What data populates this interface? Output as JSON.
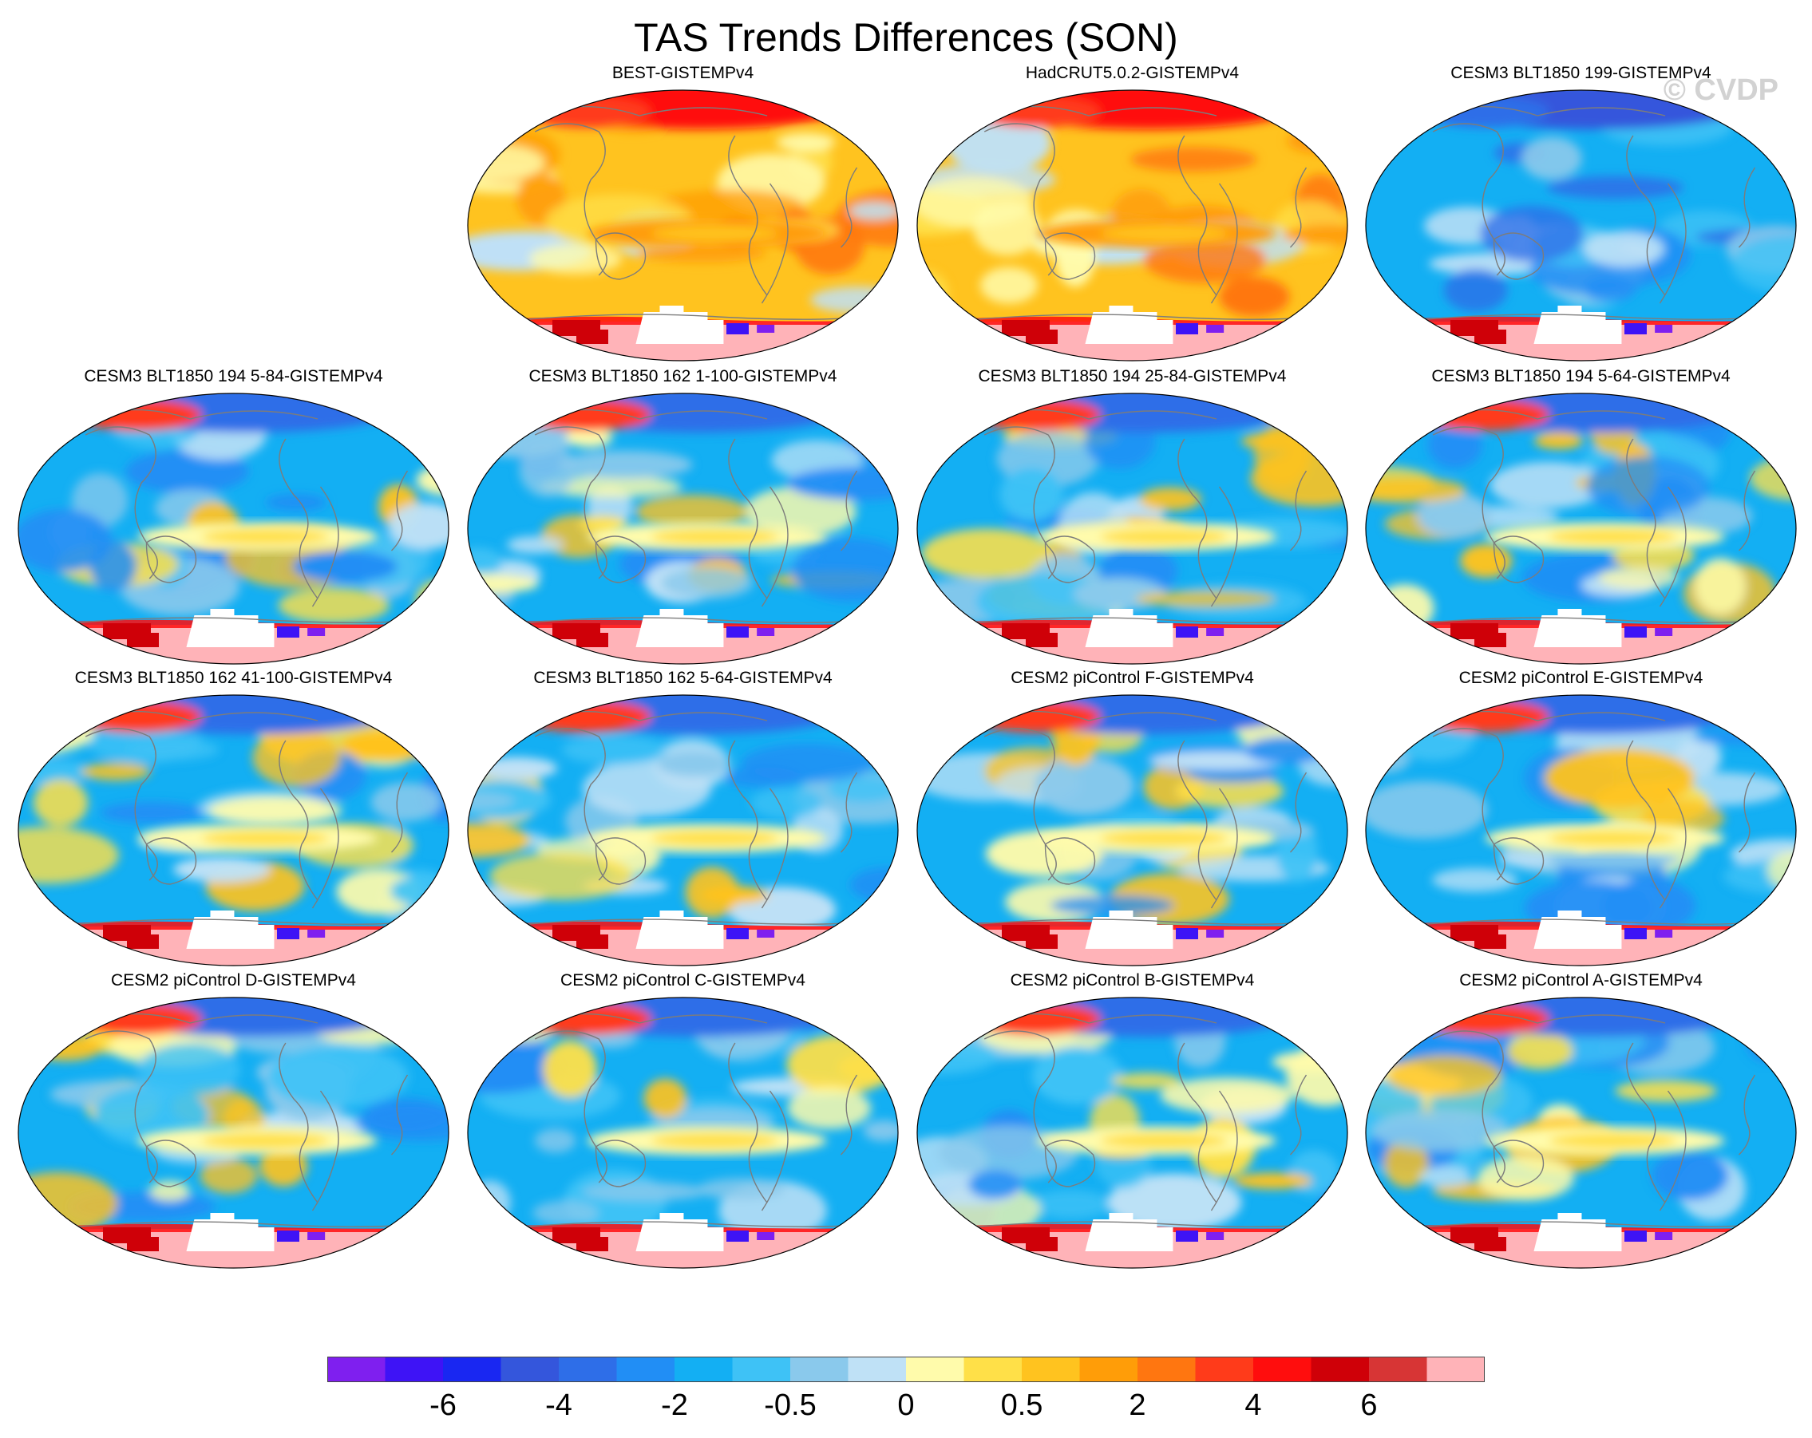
{
  "title": "TAS Trends Differences (SON)",
  "watermark": "© CVDP",
  "colors": {
    "levels": [
      "#7f1fef",
      "#3e13f6",
      "#1927f2",
      "#3456dc",
      "#2e6ee8",
      "#218ef5",
      "#13aff3",
      "#3ec2f6",
      "#8ac9ec",
      "#bfe1f6",
      "#fffbab",
      "#ffe048",
      "#ffc31f",
      "#ff9d08",
      "#ff7610",
      "#ff3b1a",
      "#ff0d0d",
      "#cf0008",
      "#d73535",
      "#ffb3b8"
    ],
    "coast": "#7c7c7c",
    "no_data": "#ffffff"
  },
  "colorbar": {
    "labels": [
      "-6",
      "-4",
      "-2",
      "-0.5",
      "0",
      "0.5",
      "2",
      "4",
      "6"
    ],
    "label_boundaries": [
      2,
      4,
      6,
      8,
      10,
      12,
      14,
      16,
      18
    ]
  },
  "panels": [
    {
      "title": "BEST-GISTEMPv4",
      "regime": "warm"
    },
    {
      "title": "HadCRUT5.0.2-GISTEMPv4",
      "regime": "warm"
    },
    {
      "title": "CESM3 BLT1850 199-GISTEMPv4",
      "regime": "cool"
    },
    {
      "title": "CESM3 BLT1850 194 5-84-GISTEMPv4",
      "regime": "mixed"
    },
    {
      "title": "CESM3 BLT1850 162 1-100-GISTEMPv4",
      "regime": "mixed"
    },
    {
      "title": "CESM3 BLT1850 194 25-84-GISTEMPv4",
      "regime": "mixed"
    },
    {
      "title": "CESM3 BLT1850 194 5-64-GISTEMPv4",
      "regime": "mixed"
    },
    {
      "title": "CESM3 BLT1850 162 41-100-GISTEMPv4",
      "regime": "mixed"
    },
    {
      "title": "CESM3 BLT1850 162 5-64-GISTEMPv4",
      "regime": "mixed"
    },
    {
      "title": "CESM2 piControl F-GISTEMPv4",
      "regime": "mixed"
    },
    {
      "title": "CESM2 piControl E-GISTEMPv4",
      "regime": "mixed"
    },
    {
      "title": "CESM2 piControl D-GISTEMPv4",
      "regime": "mixed"
    },
    {
      "title": "CESM2 piControl C-GISTEMPv4",
      "regime": "mixed"
    },
    {
      "title": "CESM2 piControl B-GISTEMPv4",
      "regime": "mixed"
    },
    {
      "title": "CESM2 piControl A-GISTEMPv4",
      "regime": "mixed"
    }
  ]
}
